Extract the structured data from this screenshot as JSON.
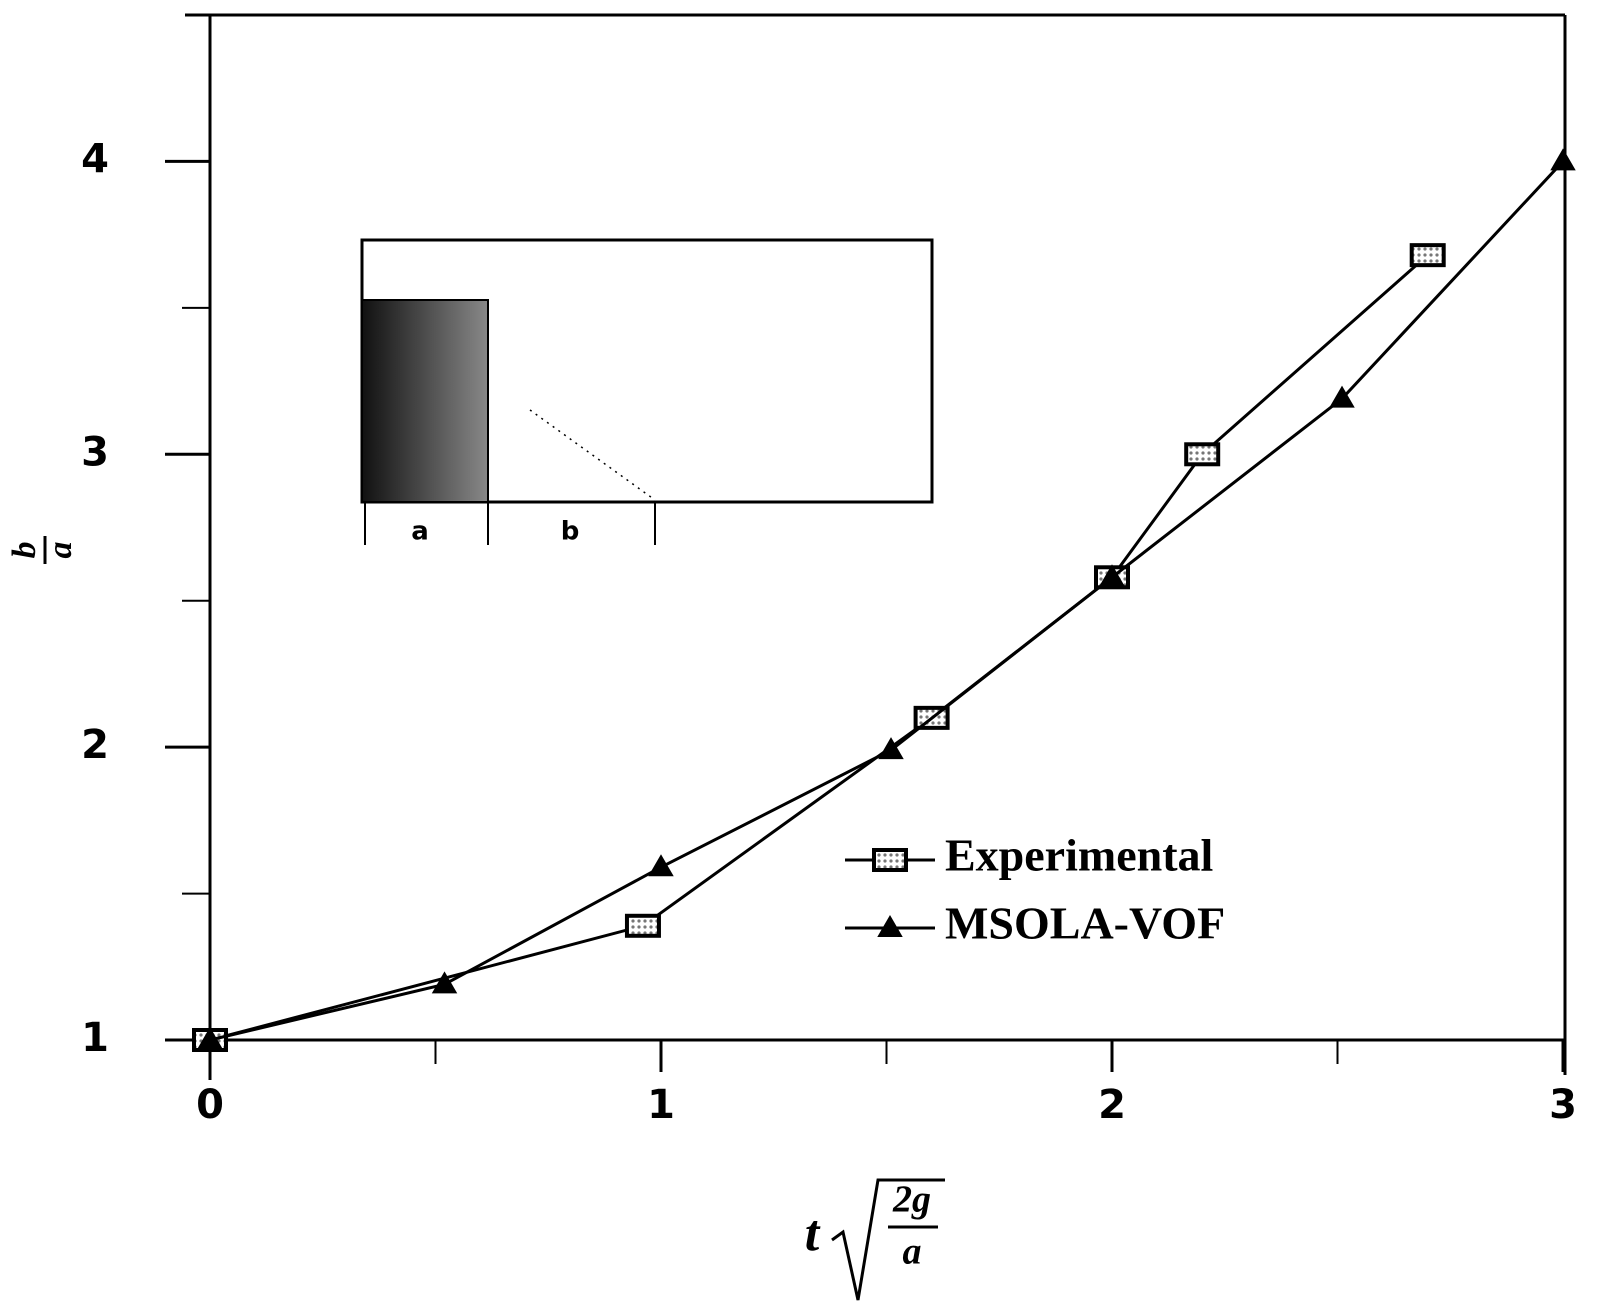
{
  "chart_data": {
    "type": "line",
    "x_label": {
      "variable": "t",
      "numerator": "2g",
      "denominator": "a"
    },
    "y_label": {
      "numerator": "b",
      "denominator": "a"
    },
    "xlim": [
      0,
      3
    ],
    "ylim": [
      1,
      4.5
    ],
    "xticks": [
      0,
      1,
      2,
      3
    ],
    "yticks": [
      1,
      2,
      3,
      4
    ],
    "xticks_minor": [
      0.5,
      1.5,
      2.5
    ],
    "yticks_minor": [
      1.5,
      2.5,
      3.5
    ],
    "legend_position": "lower right",
    "inset_labels": [
      "a",
      "b"
    ],
    "series": [
      {
        "name": "Experimental",
        "color": "#000000",
        "marker": "square",
        "x": [
          0,
          0.96,
          1.6,
          2.0,
          2.2,
          2.7
        ],
        "values": [
          1,
          1.39,
          2.1,
          2.58,
          3.0,
          3.68
        ]
      },
      {
        "name": "MSOLA-VOF",
        "color": "#000000",
        "marker": "triangle",
        "x": [
          0,
          0.52,
          1.0,
          1.51,
          2.0,
          2.51,
          3.0
        ],
        "values": [
          1,
          1.19,
          1.59,
          1.99,
          2.58,
          3.19,
          4.0
        ]
      }
    ]
  }
}
